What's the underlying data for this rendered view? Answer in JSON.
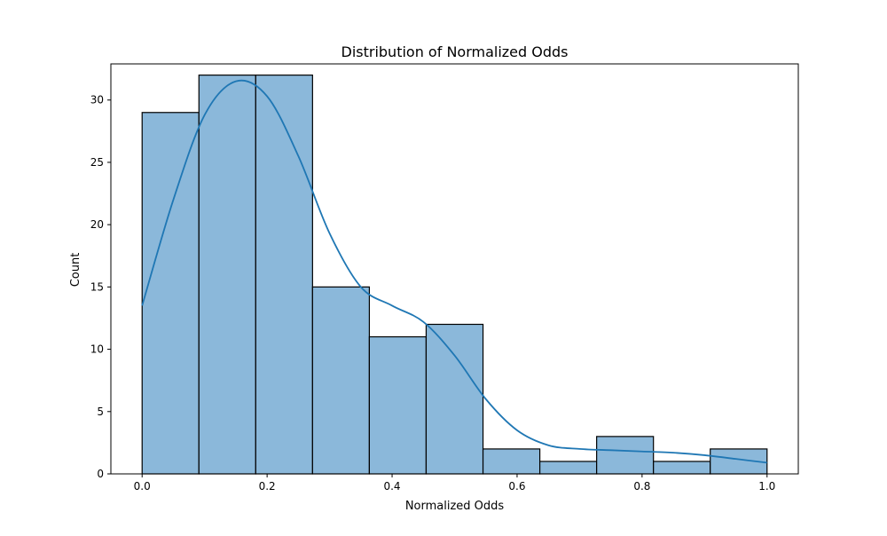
{
  "chart_data": {
    "type": "bar",
    "title": "Distribution of Normalized Odds",
    "xlabel": "Normalized Odds",
    "ylabel": "Count",
    "bins": [
      {
        "x0": 0.0,
        "x1": 0.0909,
        "count": 29
      },
      {
        "x0": 0.0909,
        "x1": 0.1818,
        "count": 32
      },
      {
        "x0": 0.1818,
        "x1": 0.2727,
        "count": 32
      },
      {
        "x0": 0.2727,
        "x1": 0.3636,
        "count": 15
      },
      {
        "x0": 0.3636,
        "x1": 0.4545,
        "count": 11
      },
      {
        "x0": 0.4545,
        "x1": 0.5455,
        "count": 12
      },
      {
        "x0": 0.5455,
        "x1": 0.6364,
        "count": 2
      },
      {
        "x0": 0.6364,
        "x1": 0.7273,
        "count": 1
      },
      {
        "x0": 0.7273,
        "x1": 0.8182,
        "count": 3
      },
      {
        "x0": 0.8182,
        "x1": 0.9091,
        "count": 1
      },
      {
        "x0": 0.9091,
        "x1": 1.0,
        "count": 2
      }
    ],
    "kde": {
      "x": [
        0.0,
        0.05,
        0.1,
        0.15,
        0.2,
        0.25,
        0.3,
        0.35,
        0.4,
        0.45,
        0.5,
        0.55,
        0.6,
        0.65,
        0.7,
        0.75,
        0.8,
        0.85,
        0.9,
        0.95,
        1.0
      ],
      "y": [
        13.5,
        22.0,
        28.8,
        31.5,
        30.3,
        25.5,
        19.3,
        15.0,
        13.5,
        12.2,
        9.5,
        6.0,
        3.5,
        2.3,
        2.0,
        1.9,
        1.8,
        1.7,
        1.5,
        1.2,
        0.9
      ]
    },
    "xlim": [
      -0.05,
      1.05
    ],
    "ylim": [
      0,
      32.9
    ],
    "xticks": [
      "0.0",
      "0.2",
      "0.4",
      "0.6",
      "0.8",
      "1.0"
    ],
    "yticks": [
      "0",
      "5",
      "10",
      "15",
      "20",
      "25",
      "30"
    ],
    "grid": false,
    "colors": {
      "bar_fill": "#8bb8da",
      "bar_edge": "#000000",
      "kde_line": "#1f77b4",
      "axis": "#000000"
    }
  }
}
